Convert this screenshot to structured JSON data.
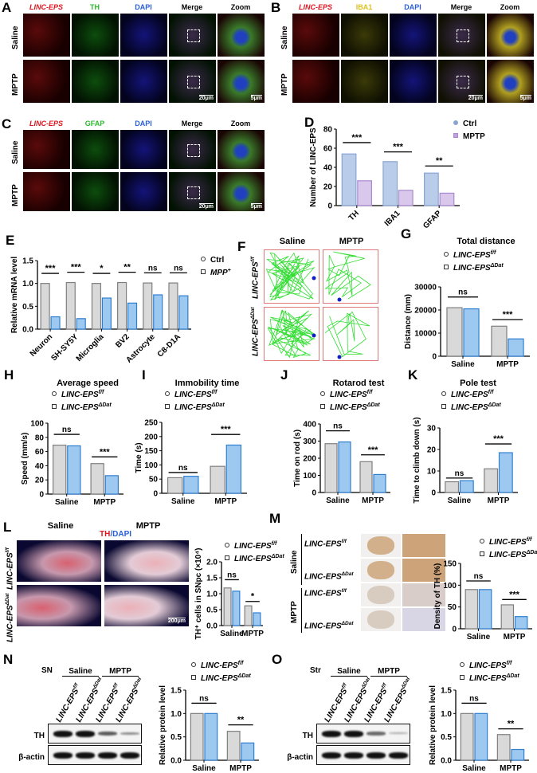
{
  "panels": {
    "A": {
      "letter": "A",
      "headers": [
        "LINC-EPS",
        "TH",
        "DAPI",
        "Merge",
        "Zoom"
      ],
      "header_colors": [
        "#e0141e",
        "#2db82d",
        "#2a5ed8",
        "#000000",
        "#000000"
      ],
      "rows": [
        "Saline",
        "MPTP"
      ],
      "scale_main": "20μm",
      "scale_zoom": "5μm"
    },
    "B": {
      "letter": "B",
      "headers": [
        "LINC-EPS",
        "IBA1",
        "DAPI",
        "Merge",
        "Zoom"
      ],
      "header_colors": [
        "#e0141e",
        "#e0c020",
        "#2a5ed8",
        "#000000",
        "#000000"
      ],
      "rows": [
        "Saline",
        "MPTP"
      ],
      "scale_main": "20μm",
      "scale_zoom": "5μm"
    },
    "C": {
      "letter": "C",
      "headers": [
        "LINC-EPS",
        "GFAP",
        "DAPI",
        "Merge",
        "Zoom"
      ],
      "header_colors": [
        "#e0141e",
        "#2db82d",
        "#2a5ed8",
        "#000000",
        "#000000"
      ],
      "rows": [
        "Saline",
        "MPTP"
      ],
      "scale_main": "20μm",
      "scale_zoom": "5μm"
    },
    "F": {
      "letter": "F",
      "cols": [
        "Saline",
        "MPTP"
      ],
      "rows": [
        {
          "base": "LINC-EPS",
          "sup": "f/f"
        },
        {
          "base": "LINC-EPS",
          "sup": "ΔDat"
        }
      ]
    },
    "L": {
      "letter": "L",
      "cols": [
        "Saline",
        "MPTP"
      ],
      "stain_a": "TH",
      "stain_b": "/DAPI",
      "rows": [
        {
          "base": "LINC-EPS",
          "sup": "f/f"
        },
        {
          "base": "LINC-EPS",
          "sup": "ΔDat"
        }
      ],
      "scale": "200μm"
    },
    "M": {
      "letter": "M",
      "groups": [
        "Saline",
        "MPTP"
      ],
      "rows": [
        {
          "base": "LINC-EPS",
          "sup": "f/f"
        },
        {
          "base": "LINC-EPS",
          "sup": "ΔDat"
        },
        {
          "base": "LINC-EPS",
          "sup": "f/f"
        },
        {
          "base": "LINC-EPS",
          "sup": "ΔDat"
        }
      ]
    },
    "N": {
      "letter": "N",
      "region": "SN",
      "groups": [
        "Saline",
        "MPTP"
      ],
      "lanes": [
        {
          "base": "LINC-EPS",
          "sup": "f/f"
        },
        {
          "base": "LINC-EPS",
          "sup": "ΔDat"
        },
        {
          "base": "LINC-EPS",
          "sup": "f/f"
        },
        {
          "base": "LINC-EPS",
          "sup": "ΔDat"
        }
      ],
      "blots": [
        "TH",
        "β-actin"
      ],
      "th_intensity": [
        1.0,
        1.0,
        0.62,
        0.37
      ]
    },
    "O": {
      "letter": "O",
      "region": "Str",
      "groups": [
        "Saline",
        "MPTP"
      ],
      "lanes": [
        {
          "base": "LINC-EPS",
          "sup": "f/f"
        },
        {
          "base": "LINC-EPS",
          "sup": "ΔDat"
        },
        {
          "base": "LINC-EPS",
          "sup": "f/f"
        },
        {
          "base": "LINC-EPS",
          "sup": "ΔDat"
        }
      ],
      "blots": [
        "TH",
        "β-actin"
      ],
      "th_intensity": [
        1.0,
        1.0,
        0.55,
        0.23
      ]
    }
  },
  "colors": {
    "ctrl_fill": "#d9d9d9",
    "ctrl_edge": "#7f7f7f",
    "ko_fill": "#9dc8f0",
    "ko_edge": "#2f7fd0",
    "d_ctrl": "#b9cdea",
    "d_mptp": "#d9c8ec",
    "trajectory": "#33dd33",
    "box_border": "#e07a7a"
  },
  "chart_data": [
    {
      "id": "D",
      "letter": "D",
      "type": "bar",
      "title": "",
      "ylabel": "Number of LINC-EPS",
      "categories": [
        "TH",
        "IBA1",
        "GFAP"
      ],
      "rotate_categories": true,
      "ylim": [
        0,
        80
      ],
      "yticks": [
        "0",
        "20",
        "40",
        "60",
        "80"
      ],
      "series": [
        {
          "name": "Ctrl",
          "values": [
            54,
            46,
            34
          ]
        },
        {
          "name": "MPTP",
          "values": [
            26,
            16,
            13
          ]
        }
      ],
      "significance": [
        "***",
        "***",
        "**"
      ],
      "legend": [
        {
          "base": "Ctrl",
          "sup": "",
          "marker": "circle"
        },
        {
          "base": "MPTP",
          "sup": "",
          "marker": "square"
        }
      ],
      "legend_position": "top-right"
    },
    {
      "id": "E",
      "letter": "E",
      "type": "bar",
      "title": "",
      "ylabel": "Relative mRNA level",
      "categories": [
        "Neuron",
        "SH-SY5Y",
        "Microglia",
        "BV2",
        "Astrocyte",
        "C8-D1A"
      ],
      "rotate_categories": true,
      "ylim": [
        0,
        1.5
      ],
      "yticks": [
        "0.0",
        "0.5",
        "1.0",
        "1.5"
      ],
      "series": [
        {
          "name": "Ctrl",
          "values": [
            1.0,
            1.02,
            1.0,
            1.02,
            1.01,
            1.01
          ]
        },
        {
          "name": "MPP+",
          "values": [
            0.27,
            0.23,
            0.68,
            0.57,
            0.75,
            0.73
          ]
        }
      ],
      "significance": [
        "***",
        "***",
        "*",
        "**",
        "ns",
        "ns"
      ],
      "legend": [
        {
          "base": "Ctrl",
          "sup": "",
          "marker": "circle"
        },
        {
          "base": "MPP",
          "sup": "+",
          "marker": "square"
        }
      ],
      "legend_position": "top-right"
    },
    {
      "id": "G",
      "letter": "G",
      "type": "bar",
      "title": "Total distance",
      "ylabel": "Distance (mm)",
      "categories": [
        "Saline",
        "MPTP"
      ],
      "ylim": [
        0,
        30000
      ],
      "yticks": [
        "0",
        "10000",
        "20000",
        "30000"
      ],
      "series": [
        {
          "name": "LINC-EPS f/f",
          "values": [
            21000,
            13000
          ]
        },
        {
          "name": "LINC-EPS ΔDat",
          "values": [
            20500,
            7500
          ]
        }
      ],
      "significance": [
        "ns",
        "***"
      ],
      "legend": [
        {
          "base": "LINC-EPS",
          "sup": "f/f",
          "marker": "circle"
        },
        {
          "base": "LINC-EPS",
          "sup": "ΔDat",
          "marker": "square"
        }
      ],
      "legend_position": "top"
    },
    {
      "id": "H",
      "letter": "H",
      "type": "bar",
      "title": "Average speed",
      "ylabel": "Speed (mm/s)",
      "categories": [
        "Saline",
        "MPTP"
      ],
      "ylim": [
        0,
        100
      ],
      "yticks": [
        "0",
        "20",
        "40",
        "60",
        "80",
        "100"
      ],
      "series": [
        {
          "name": "LINC-EPS f/f",
          "values": [
            69,
            43
          ]
        },
        {
          "name": "LINC-EPS ΔDat",
          "values": [
            68,
            26
          ]
        }
      ],
      "significance": [
        "ns",
        "***"
      ],
      "legend": [
        {
          "base": "LINC-EPS",
          "sup": "f/f",
          "marker": "circle"
        },
        {
          "base": "LINC-EPS",
          "sup": "ΔDat",
          "marker": "square"
        }
      ],
      "legend_position": "top"
    },
    {
      "id": "I",
      "letter": "I",
      "type": "bar",
      "title": "Immobility time",
      "ylabel": "Time (s)",
      "categories": [
        "Saline",
        "MPTP"
      ],
      "ylim": [
        0,
        250
      ],
      "yticks": [
        "0",
        "50",
        "100",
        "150",
        "200",
        "250"
      ],
      "series": [
        {
          "name": "LINC-EPS f/f",
          "values": [
            55,
            95
          ]
        },
        {
          "name": "LINC-EPS ΔDat",
          "values": [
            60,
            170
          ]
        }
      ],
      "significance": [
        "ns",
        "***"
      ],
      "legend": [
        {
          "base": "LINC-EPS",
          "sup": "f/f",
          "marker": "circle"
        },
        {
          "base": "LINC-EPS",
          "sup": "ΔDat",
          "marker": "square"
        }
      ],
      "legend_position": "top"
    },
    {
      "id": "J",
      "letter": "J",
      "type": "bar",
      "title": "Rotarod test",
      "ylabel": "Time on rod (s)",
      "categories": [
        "Saline",
        "MPTP"
      ],
      "ylim": [
        0,
        400
      ],
      "yticks": [
        "0",
        "100",
        "200",
        "300",
        "400"
      ],
      "series": [
        {
          "name": "LINC-EPS f/f",
          "values": [
            285,
            180
          ]
        },
        {
          "name": "LINC-EPS ΔDat",
          "values": [
            295,
            105
          ]
        }
      ],
      "significance": [
        "ns",
        "***"
      ],
      "legend": [
        {
          "base": "LINC-EPS",
          "sup": "f/f",
          "marker": "circle"
        },
        {
          "base": "LINC-EPS",
          "sup": "ΔDat",
          "marker": "square"
        }
      ],
      "legend_position": "top"
    },
    {
      "id": "K",
      "letter": "K",
      "type": "bar",
      "title": "Pole test",
      "ylabel": "Time to climb down (s)",
      "categories": [
        "Saline",
        "MPTP"
      ],
      "ylim": [
        0,
        30
      ],
      "yticks": [
        "0",
        "10",
        "20",
        "30"
      ],
      "series": [
        {
          "name": "LINC-EPS f/f",
          "values": [
            5,
            11
          ]
        },
        {
          "name": "LINC-EPS ΔDat",
          "values": [
            5.5,
            18.5
          ]
        }
      ],
      "significance": [
        "ns",
        "***"
      ],
      "legend": [
        {
          "base": "LINC-EPS",
          "sup": "f/f",
          "marker": "circle"
        },
        {
          "base": "LINC-EPS",
          "sup": "ΔDat",
          "marker": "square"
        }
      ],
      "legend_position": "top"
    },
    {
      "id": "L",
      "type": "bar",
      "title": "",
      "ylabel": "TH⁺ cells in SNpc (×10⁴)",
      "categories": [
        "Saline",
        "MPTP"
      ],
      "ylim": [
        0,
        2.0
      ],
      "yticks": [
        "0.0",
        "0.5",
        "1.0",
        "1.5",
        "2.0"
      ],
      "series": [
        {
          "name": "LINC-EPS f/f",
          "values": [
            1.18,
            0.62
          ]
        },
        {
          "name": "LINC-EPS ΔDat",
          "values": [
            1.08,
            0.4
          ]
        }
      ],
      "significance": [
        "ns",
        "*"
      ],
      "legend": [
        {
          "base": "LINC-EPS",
          "sup": "f/f",
          "marker": "circle"
        },
        {
          "base": "LINC-EPS",
          "sup": "ΔDat",
          "marker": "square"
        }
      ],
      "legend_position": "top"
    },
    {
      "id": "M",
      "type": "bar",
      "title": "",
      "ylabel": "Density of TH (%)",
      "categories": [
        "Saline",
        "MPTP"
      ],
      "ylim": [
        0,
        150
      ],
      "yticks": [
        "0",
        "50",
        "100",
        "150"
      ],
      "series": [
        {
          "name": "LINC-EPS f/f",
          "values": [
            90,
            55
          ]
        },
        {
          "name": "LINC-EPS ΔDat",
          "values": [
            90,
            28
          ]
        }
      ],
      "significance": [
        "ns",
        "***"
      ],
      "legend": [
        {
          "base": "LINC-EPS",
          "sup": "f/f",
          "marker": "circle"
        },
        {
          "base": "LINC-EPS",
          "sup": "ΔDat",
          "marker": "square"
        }
      ],
      "legend_position": "top"
    },
    {
      "id": "N",
      "type": "bar",
      "title": "",
      "ylabel": "Relative protein level",
      "categories": [
        "Saline",
        "MPTP"
      ],
      "ylim": [
        0,
        1.5
      ],
      "yticks": [
        "0.0",
        "0.5",
        "1.0",
        "1.5"
      ],
      "series": [
        {
          "name": "LINC-EPS f/f",
          "values": [
            1.0,
            0.62
          ]
        },
        {
          "name": "LINC-EPS ΔDat",
          "values": [
            1.0,
            0.37
          ]
        }
      ],
      "significance": [
        "ns",
        "**"
      ],
      "legend": [
        {
          "base": "LINC-EPS",
          "sup": "f/f",
          "marker": "circle"
        },
        {
          "base": "LINC-EPS",
          "sup": "ΔDat",
          "marker": "square"
        }
      ],
      "legend_position": "top"
    },
    {
      "id": "O",
      "type": "bar",
      "title": "",
      "ylabel": "Relative protein level",
      "categories": [
        "Saline",
        "MPTP"
      ],
      "ylim": [
        0,
        1.5
      ],
      "yticks": [
        "0.0",
        "0.5",
        "1.0",
        "1.5"
      ],
      "series": [
        {
          "name": "LINC-EPS f/f",
          "values": [
            1.0,
            0.55
          ]
        },
        {
          "name": "LINC-EPS ΔDat",
          "values": [
            1.0,
            0.23
          ]
        }
      ],
      "significance": [
        "ns",
        "**"
      ],
      "legend": [
        {
          "base": "LINC-EPS",
          "sup": "f/f",
          "marker": "circle"
        },
        {
          "base": "LINC-EPS",
          "sup": "ΔDat",
          "marker": "square"
        }
      ],
      "legend_position": "top"
    }
  ]
}
